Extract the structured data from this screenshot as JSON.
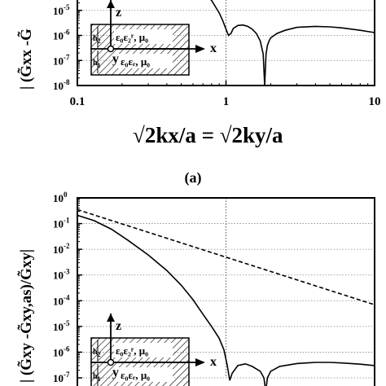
{
  "chart_data": [
    {
      "panel": "top",
      "type": "line",
      "scale": "log-log",
      "xlim": [
        0.1,
        10
      ],
      "ylim": [
        1e-08,
        0.0001
      ],
      "x_ticks": [
        "0.1",
        "1",
        "10"
      ],
      "y_ticks": [
        {
          "base": "10",
          "exp": "-8"
        },
        {
          "base": "10",
          "exp": "-7"
        },
        {
          "base": "10",
          "exp": "-6"
        },
        {
          "base": "10",
          "exp": "-5"
        }
      ],
      "ylabel_text": "| (G̃xx -G̃",
      "xlabel": "√2kx/a = √2ky/a",
      "grid": true,
      "series": [
        {
          "style": "solid",
          "x": [
            0.6,
            0.7,
            0.8,
            0.9,
            0.95,
            1.0,
            1.04,
            1.08,
            1.12,
            1.2,
            1.3,
            1.4,
            1.5,
            1.6,
            1.7,
            1.78,
            1.82,
            1.86,
            1.9,
            1.95,
            2.0,
            2.2,
            2.5,
            3.0,
            4.0,
            5.0,
            6.0,
            8.0,
            10.0
          ],
          "y": [
            0.00012,
            6e-05,
            2.5e-05,
            8e-06,
            4e-06,
            1.8e-06,
            1e-06,
            1.2e-06,
            1.9e-06,
            2.5e-06,
            2.6e-06,
            2.3e-06,
            1.8e-06,
            1.2e-06,
            6e-07,
            1.8e-07,
            1e-08,
            1.8e-07,
            4e-07,
            6e-07,
            8e-07,
            1.2e-06,
            1.6e-06,
            2.1e-06,
            2.3e-06,
            2.2e-06,
            2e-06,
            1.6e-06,
            1.3e-06
          ]
        }
      ],
      "vline_x": 1
    },
    {
      "panel": "bottom",
      "type": "line",
      "scale": "log-log",
      "xlim": [
        0.1,
        10
      ],
      "ylim": [
        1e-07,
        1
      ],
      "y_ticks": [
        {
          "base": "10",
          "exp": "0"
        },
        {
          "base": "10",
          "exp": "-1"
        },
        {
          "base": "10",
          "exp": "-2"
        },
        {
          "base": "10",
          "exp": "-3"
        },
        {
          "base": "10",
          "exp": "-4"
        },
        {
          "base": "10",
          "exp": "-5"
        },
        {
          "base": "10",
          "exp": "-6"
        },
        {
          "base": "10",
          "exp": "-7"
        }
      ],
      "ylabel_text": "| (G̃xy -G̃xy,as)/G̃xy|",
      "grid": true,
      "series": [
        {
          "style": "solid",
          "x": [
            0.1,
            0.13,
            0.17,
            0.22,
            0.3,
            0.4,
            0.5,
            0.6,
            0.7,
            0.8,
            0.9,
            0.97,
            1.02,
            1.06,
            1.1,
            1.2,
            1.35,
            1.5,
            1.7,
            1.8,
            1.85,
            1.9,
            2.0,
            2.3,
            3.0,
            4.0,
            5.0,
            6.0,
            8.0,
            10.0
          ],
          "y": [
            0.21,
            0.13,
            0.06,
            0.022,
            0.006,
            0.0015,
            0.0004,
            0.00011,
            3e-05,
            1e-05,
            3.5e-06,
            1.2e-06,
            3e-07,
            8e-08,
            1.5e-07,
            3e-07,
            3.5e-07,
            2.8e-07,
            1.8e-07,
            1e-07,
            3e-08,
            1e-07,
            1.8e-07,
            2.8e-07,
            3.6e-07,
            4e-07,
            4e-07,
            3.8e-07,
            3.4e-07,
            3e-07
          ]
        },
        {
          "style": "dashed",
          "x": [
            0.1,
            10
          ],
          "y": [
            0.35,
            7e-05
          ]
        }
      ],
      "vline_x": 1
    }
  ],
  "panel_label": "(a)",
  "inset": {
    "z_label": "z",
    "x_label": "x",
    "y_label": "y",
    "h2": "h",
    "h2_sub": "2",
    "h1": "h",
    "h1_sub": "1",
    "upper_layer": "ε₀ε₂ʳ,  μ₀",
    "lower_layer": "ε₀εᵣ,  μ₀"
  }
}
